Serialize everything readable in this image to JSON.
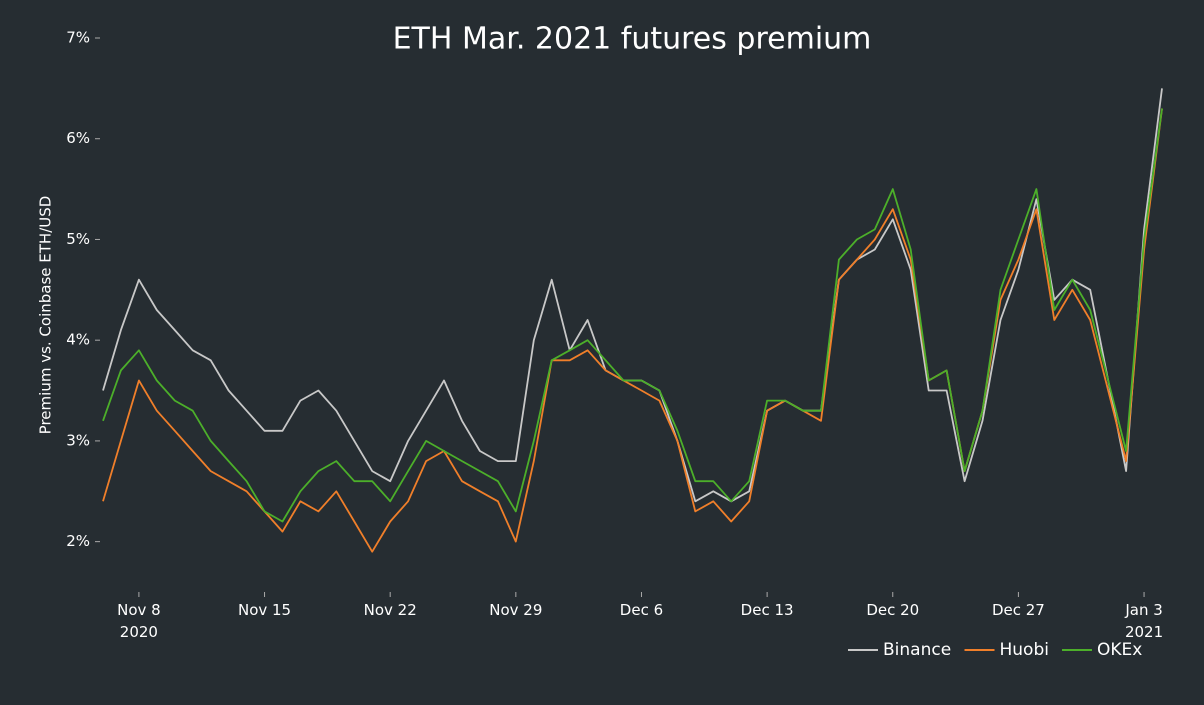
{
  "chart_data": {
    "type": "line",
    "title": "ETH Mar. 2021 futures premium",
    "y_label": "Premium vs. Coinbase ETH/USD",
    "x": [
      "2020-11-06",
      "2020-11-07",
      "2020-11-08",
      "2020-11-09",
      "2020-11-10",
      "2020-11-11",
      "2020-11-12",
      "2020-11-13",
      "2020-11-14",
      "2020-11-15",
      "2020-11-16",
      "2020-11-17",
      "2020-11-18",
      "2020-11-19",
      "2020-11-20",
      "2020-11-21",
      "2020-11-22",
      "2020-11-23",
      "2020-11-24",
      "2020-11-25",
      "2020-11-26",
      "2020-11-27",
      "2020-11-28",
      "2020-11-29",
      "2020-11-30",
      "2020-12-01",
      "2020-12-02",
      "2020-12-03",
      "2020-12-04",
      "2020-12-05",
      "2020-12-06",
      "2020-12-07",
      "2020-12-08",
      "2020-12-09",
      "2020-12-10",
      "2020-12-11",
      "2020-12-12",
      "2020-12-13",
      "2020-12-14",
      "2020-12-15",
      "2020-12-16",
      "2020-12-17",
      "2020-12-18",
      "2020-12-19",
      "2020-12-20",
      "2020-12-21",
      "2020-12-22",
      "2020-12-23",
      "2020-12-24",
      "2020-12-25",
      "2020-12-26",
      "2020-12-27",
      "2020-12-28",
      "2020-12-29",
      "2020-12-30",
      "2020-12-31",
      "2021-01-01",
      "2021-01-02",
      "2021-01-03",
      "2021-01-04"
    ],
    "series": [
      {
        "name": "Binance",
        "color": "#c8c8c8",
        "values": [
          3.5,
          4.1,
          4.6,
          4.3,
          4.1,
          3.9,
          3.8,
          3.5,
          3.3,
          3.1,
          3.1,
          3.4,
          3.5,
          3.3,
          3.0,
          2.7,
          2.6,
          3.0,
          3.3,
          3.6,
          3.2,
          2.9,
          2.8,
          2.8,
          4.0,
          4.6,
          3.9,
          4.2,
          3.7,
          3.6,
          3.6,
          3.5,
          3.0,
          2.4,
          2.5,
          2.4,
          2.5,
          3.3,
          3.4,
          3.3,
          3.3,
          4.6,
          4.8,
          4.9,
          5.2,
          4.7,
          3.5,
          3.5,
          2.6,
          3.2,
          4.2,
          4.7,
          5.4,
          4.4,
          4.6,
          4.5,
          3.6,
          2.7,
          5.1,
          6.5
        ]
      },
      {
        "name": "Huobi",
        "color": "#f07f2a",
        "values": [
          2.4,
          3.0,
          3.6,
          3.3,
          3.1,
          2.9,
          2.7,
          2.6,
          2.5,
          2.3,
          2.1,
          2.4,
          2.3,
          2.5,
          2.2,
          1.9,
          2.2,
          2.4,
          2.8,
          2.9,
          2.6,
          2.5,
          2.4,
          2.0,
          2.8,
          3.8,
          3.8,
          3.9,
          3.7,
          3.6,
          3.5,
          3.4,
          3.0,
          2.3,
          2.4,
          2.2,
          2.4,
          3.3,
          3.4,
          3.3,
          3.2,
          4.6,
          4.8,
          5.0,
          5.3,
          4.8,
          3.6,
          3.7,
          2.7,
          3.3,
          4.4,
          4.8,
          5.3,
          4.2,
          4.5,
          4.2,
          3.5,
          2.8,
          4.9,
          6.3
        ]
      },
      {
        "name": "OKEx",
        "color": "#4caf2a",
        "values": [
          3.2,
          3.7,
          3.9,
          3.6,
          3.4,
          3.3,
          3.0,
          2.8,
          2.6,
          2.3,
          2.2,
          2.5,
          2.7,
          2.8,
          2.6,
          2.6,
          2.4,
          2.7,
          3.0,
          2.9,
          2.8,
          2.7,
          2.6,
          2.3,
          3.0,
          3.8,
          3.9,
          4.0,
          3.8,
          3.6,
          3.6,
          3.5,
          3.1,
          2.6,
          2.6,
          2.4,
          2.6,
          3.4,
          3.4,
          3.3,
          3.3,
          4.8,
          5.0,
          5.1,
          5.5,
          4.9,
          3.6,
          3.7,
          2.7,
          3.3,
          4.5,
          5.0,
          5.5,
          4.3,
          4.6,
          4.3,
          3.6,
          2.9,
          5.0,
          6.3
        ]
      }
    ],
    "xlim": [
      "2020-11-06",
      "2021-01-04"
    ],
    "xticks": [
      {
        "value": "2020-11-08",
        "label": "Nov 8\n2020"
      },
      {
        "value": "2020-11-15",
        "label": "Nov 15"
      },
      {
        "value": "2020-11-22",
        "label": "Nov 22"
      },
      {
        "value": "2020-11-29",
        "label": "Nov 29"
      },
      {
        "value": "2020-12-06",
        "label": "Dec 6"
      },
      {
        "value": "2020-12-13",
        "label": "Dec 13"
      },
      {
        "value": "2020-12-20",
        "label": "Dec 20"
      },
      {
        "value": "2020-12-27",
        "label": "Dec 27"
      },
      {
        "value": "2021-01-03",
        "label": "Jan 3\n2021"
      }
    ],
    "ylim": [
      1.5,
      7
    ],
    "yticks": [
      {
        "value": 2,
        "label": "2%"
      },
      {
        "value": 3,
        "label": "3%"
      },
      {
        "value": 4,
        "label": "4%"
      },
      {
        "value": 5,
        "label": "5%"
      },
      {
        "value": 6,
        "label": "6%"
      },
      {
        "value": 7,
        "label": "7%"
      }
    ],
    "legend": "bottom-right"
  }
}
